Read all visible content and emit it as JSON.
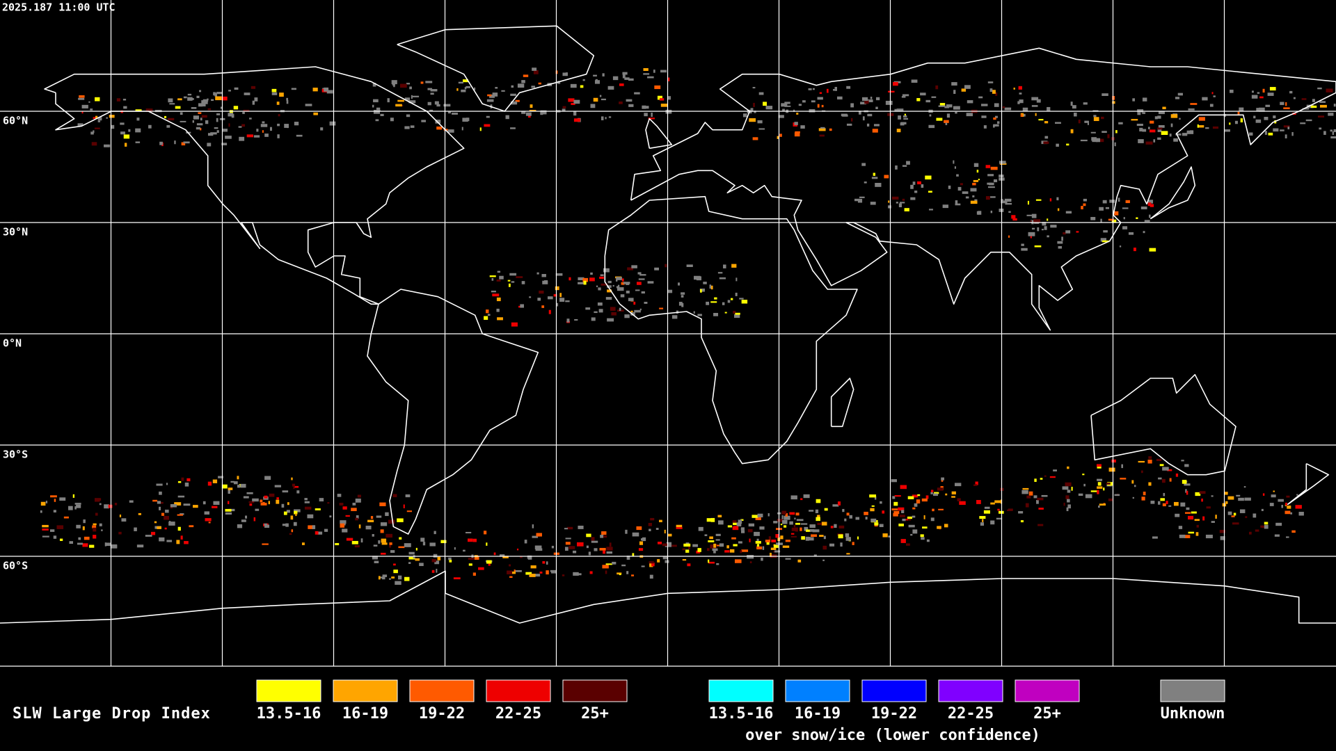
{
  "header": {
    "timestamp": "2025.187 11:00 UTC"
  },
  "map": {
    "latitude_labels": [
      "60°N",
      "30°N",
      "0°N",
      "30°S",
      "60°S"
    ]
  },
  "legend": {
    "title": "SLW Large Drop Index",
    "groups": [
      {
        "items": [
          {
            "label": "13.5-16",
            "color": "#ffff00"
          },
          {
            "label": "16-19",
            "color": "#ffa500"
          },
          {
            "label": "19-22",
            "color": "#ff5a00"
          },
          {
            "label": "22-25",
            "color": "#ee0000"
          },
          {
            "label": "25+",
            "color": "#5a0000"
          }
        ]
      },
      {
        "items": [
          {
            "label": "13.5-16",
            "color": "#00ffff"
          },
          {
            "label": "16-19",
            "color": "#0080ff"
          },
          {
            "label": "19-22",
            "color": "#0000ff"
          },
          {
            "label": "22-25",
            "color": "#8000ff"
          },
          {
            "label": "25+",
            "color": "#c000c0"
          }
        ],
        "caption": "over snow/ice (lower confidence)"
      },
      {
        "items": [
          {
            "label": "Unknown",
            "color": "#808080"
          }
        ]
      }
    ]
  }
}
